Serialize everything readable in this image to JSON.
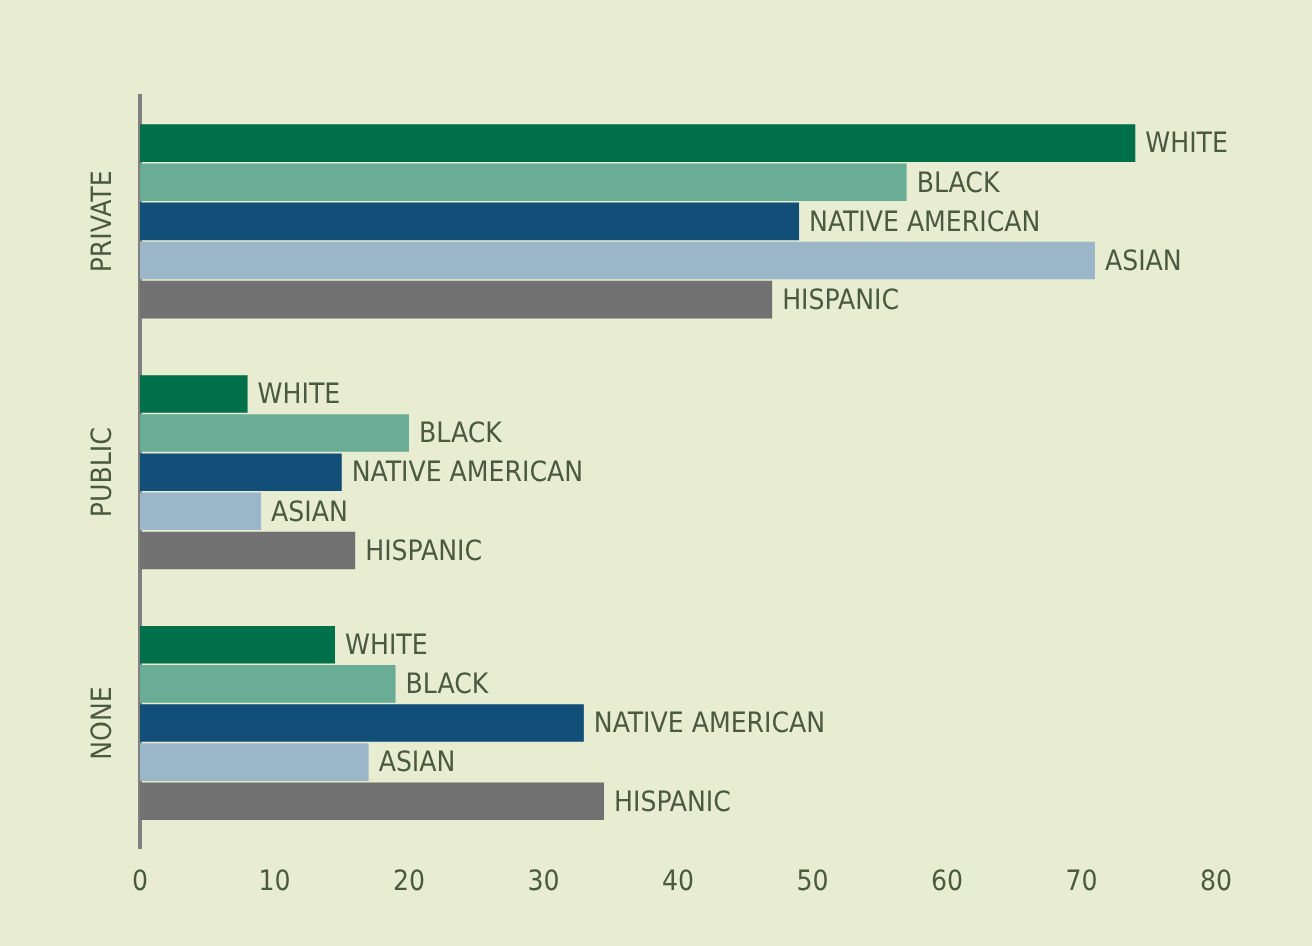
{
  "chart_data": {
    "type": "bar",
    "orientation": "horizontal",
    "categories": [
      "PRIVATE",
      "PUBLIC",
      "NONE"
    ],
    "series": [
      {
        "name": "WHITE",
        "color": "#00704a",
        "values": [
          74,
          8,
          14.5
        ]
      },
      {
        "name": "BLACK",
        "color": "#6aad97",
        "values": [
          57,
          20,
          19
        ]
      },
      {
        "name": "NATIVE AMERICAN",
        "color": "#124f78",
        "values": [
          49,
          15,
          33
        ]
      },
      {
        "name": "ASIAN",
        "color": "#9bb6c9",
        "values": [
          71,
          9,
          17
        ]
      },
      {
        "name": "HISPANIC",
        "color": "#717171",
        "values": [
          47,
          16,
          34.5
        ]
      }
    ],
    "xlim": [
      0,
      80
    ],
    "xticks": [
      0,
      10,
      20,
      30,
      40,
      50,
      60,
      70,
      80
    ],
    "grid": false,
    "legend": false
  }
}
